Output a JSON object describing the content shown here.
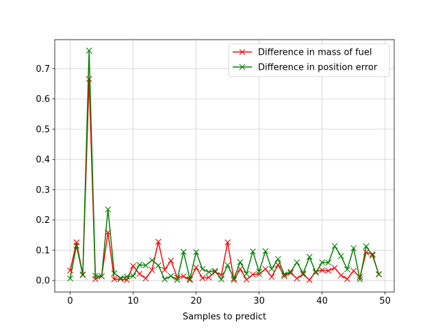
{
  "chart_data": {
    "type": "line",
    "title": "",
    "xlabel": "Samples to predict",
    "ylabel": "",
    "xlim": [
      -2.45,
      51.45
    ],
    "ylim": [
      -0.038,
      0.796
    ],
    "grid": true,
    "legend_position": "top-right",
    "xticks": [
      0,
      10,
      20,
      30,
      40,
      50
    ],
    "yticks": [
      0.0,
      0.1,
      0.2,
      0.3,
      0.4,
      0.5,
      0.6,
      0.7
    ],
    "ytick_labels": [
      "0.0",
      "0.1",
      "0.2",
      "0.3",
      "0.4",
      "0.5",
      "0.6",
      "0.7"
    ],
    "x": [
      0,
      1,
      2,
      3,
      4,
      5,
      6,
      7,
      8,
      9,
      10,
      11,
      12,
      13,
      14,
      15,
      16,
      17,
      18,
      19,
      20,
      21,
      22,
      23,
      24,
      25,
      26,
      27,
      28,
      29,
      30,
      31,
      32,
      33,
      34,
      35,
      36,
      37,
      38,
      39,
      40,
      41,
      42,
      43,
      44,
      45,
      46,
      47,
      48,
      49
    ],
    "series": [
      {
        "name": "Difference in mass of fuel",
        "color": "#ff0000",
        "marker": "x",
        "values": [
          0.033,
          0.126,
          0.02,
          0.666,
          0.005,
          0.014,
          0.159,
          0.004,
          0.005,
          0.002,
          0.048,
          0.022,
          0.007,
          0.035,
          0.128,
          0.035,
          0.066,
          0.01,
          0.014,
          0.002,
          0.043,
          0.008,
          0.01,
          0.028,
          0.018,
          0.126,
          0.002,
          0.038,
          0.003,
          0.02,
          0.021,
          0.038,
          0.012,
          0.052,
          0.015,
          0.025,
          0.007,
          0.02,
          0.002,
          0.03,
          0.034,
          0.032,
          0.042,
          0.017,
          0.005,
          0.032,
          0.011,
          0.093,
          0.087,
          0.02
        ]
      },
      {
        "name": "Difference in position error",
        "color": "#008000",
        "marker": "x",
        "values": [
          0.007,
          0.115,
          0.018,
          0.76,
          0.016,
          0.014,
          0.235,
          0.024,
          0.008,
          0.013,
          0.015,
          0.052,
          0.05,
          0.067,
          0.05,
          0.004,
          0.015,
          0.002,
          0.095,
          0.005,
          0.094,
          0.038,
          0.028,
          0.032,
          0.004,
          0.051,
          0.007,
          0.061,
          0.022,
          0.096,
          0.029,
          0.097,
          0.038,
          0.071,
          0.02,
          0.029,
          0.06,
          0.024,
          0.078,
          0.026,
          0.06,
          0.059,
          0.114,
          0.081,
          0.037,
          0.107,
          0.004,
          0.113,
          0.083,
          0.021
        ]
      }
    ]
  }
}
